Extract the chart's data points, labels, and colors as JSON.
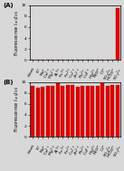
{
  "panel_A": {
    "label": "(A)",
    "categories": [
      "blank",
      "K+",
      "Na+",
      "Ca2+",
      "Mg2+",
      "Al3+",
      "Fe3+",
      "Fe2+",
      "Cu2+",
      "Zn2+",
      "Pb2+",
      "Cd2+",
      "Hg2+",
      "NO3-",
      "Cl-",
      "SO42-",
      "HCO3-",
      "SO32-"
    ],
    "values": [
      0.05,
      0.05,
      0.05,
      0.08,
      0.05,
      0.07,
      0.06,
      0.08,
      0.07,
      0.05,
      0.05,
      0.06,
      0.05,
      0.05,
      0.05,
      0.05,
      0.05,
      9.5
    ],
    "ylim": [
      0,
      10
    ],
    "yticks": [
      0,
      2,
      4,
      6,
      8,
      10
    ],
    "bar_color": "#dd0000"
  },
  "panel_B": {
    "label": "(B)",
    "categories": [
      "blank",
      "K+",
      "Na+",
      "Ca2+",
      "Mg2+",
      "Al3+",
      "Fe3+",
      "Fe2+",
      "Cu2+",
      "Zn2+",
      "Pb2+",
      "Cd2+",
      "Hg2+",
      "NO3-",
      "Cl-",
      "SO42-",
      "HCO3-",
      "SO32-"
    ],
    "values": [
      9.3,
      9.0,
      9.1,
      9.3,
      9.3,
      9.7,
      9.3,
      9.5,
      9.5,
      9.1,
      9.2,
      9.2,
      9.3,
      9.3,
      9.7,
      9.3,
      9.4,
      9.5
    ],
    "ylim": [
      0,
      10
    ],
    "yticks": [
      0,
      2,
      4,
      6,
      8,
      10
    ],
    "bar_color": "#dd0000"
  },
  "background_color": "#d8d8d8",
  "fig_background": "#d8d8d8"
}
